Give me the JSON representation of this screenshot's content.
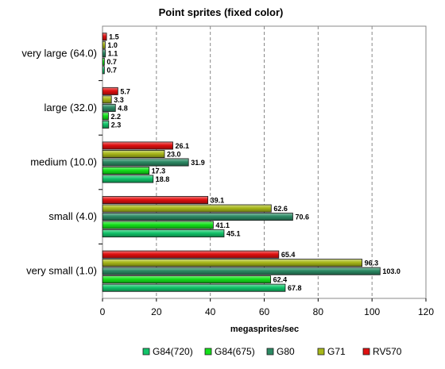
{
  "chart_data": {
    "type": "bar",
    "orientation": "horizontal",
    "title": "Point sprites (fixed color)",
    "xlabel": "megasprites/sec",
    "ylabel": "",
    "xlim": [
      0,
      120
    ],
    "xticks": [
      0,
      20,
      40,
      60,
      80,
      100,
      120
    ],
    "grid": true,
    "legend_position": "bottom",
    "categories": [
      "very large (64.0)",
      "large (32.0)",
      "medium (10.0)",
      "small (4.0)",
      "very small (1.0)"
    ],
    "series": [
      {
        "name": "G84(720)",
        "color": "#12c46a",
        "values": [
          0.7,
          2.3,
          18.8,
          45.1,
          67.8
        ]
      },
      {
        "name": "G84(675)",
        "color": "#14e01a",
        "values": [
          0.7,
          2.2,
          17.3,
          41.1,
          62.4
        ]
      },
      {
        "name": "G80",
        "color": "#2c8a64",
        "values": [
          1.1,
          4.8,
          31.9,
          70.6,
          103.0
        ]
      },
      {
        "name": "G71",
        "color": "#a8b81a",
        "values": [
          1.0,
          3.3,
          23.0,
          62.6,
          96.3
        ]
      },
      {
        "name": "RV570",
        "color": "#e01010",
        "values": [
          1.5,
          5.7,
          26.1,
          39.1,
          65.4
        ]
      }
    ]
  }
}
